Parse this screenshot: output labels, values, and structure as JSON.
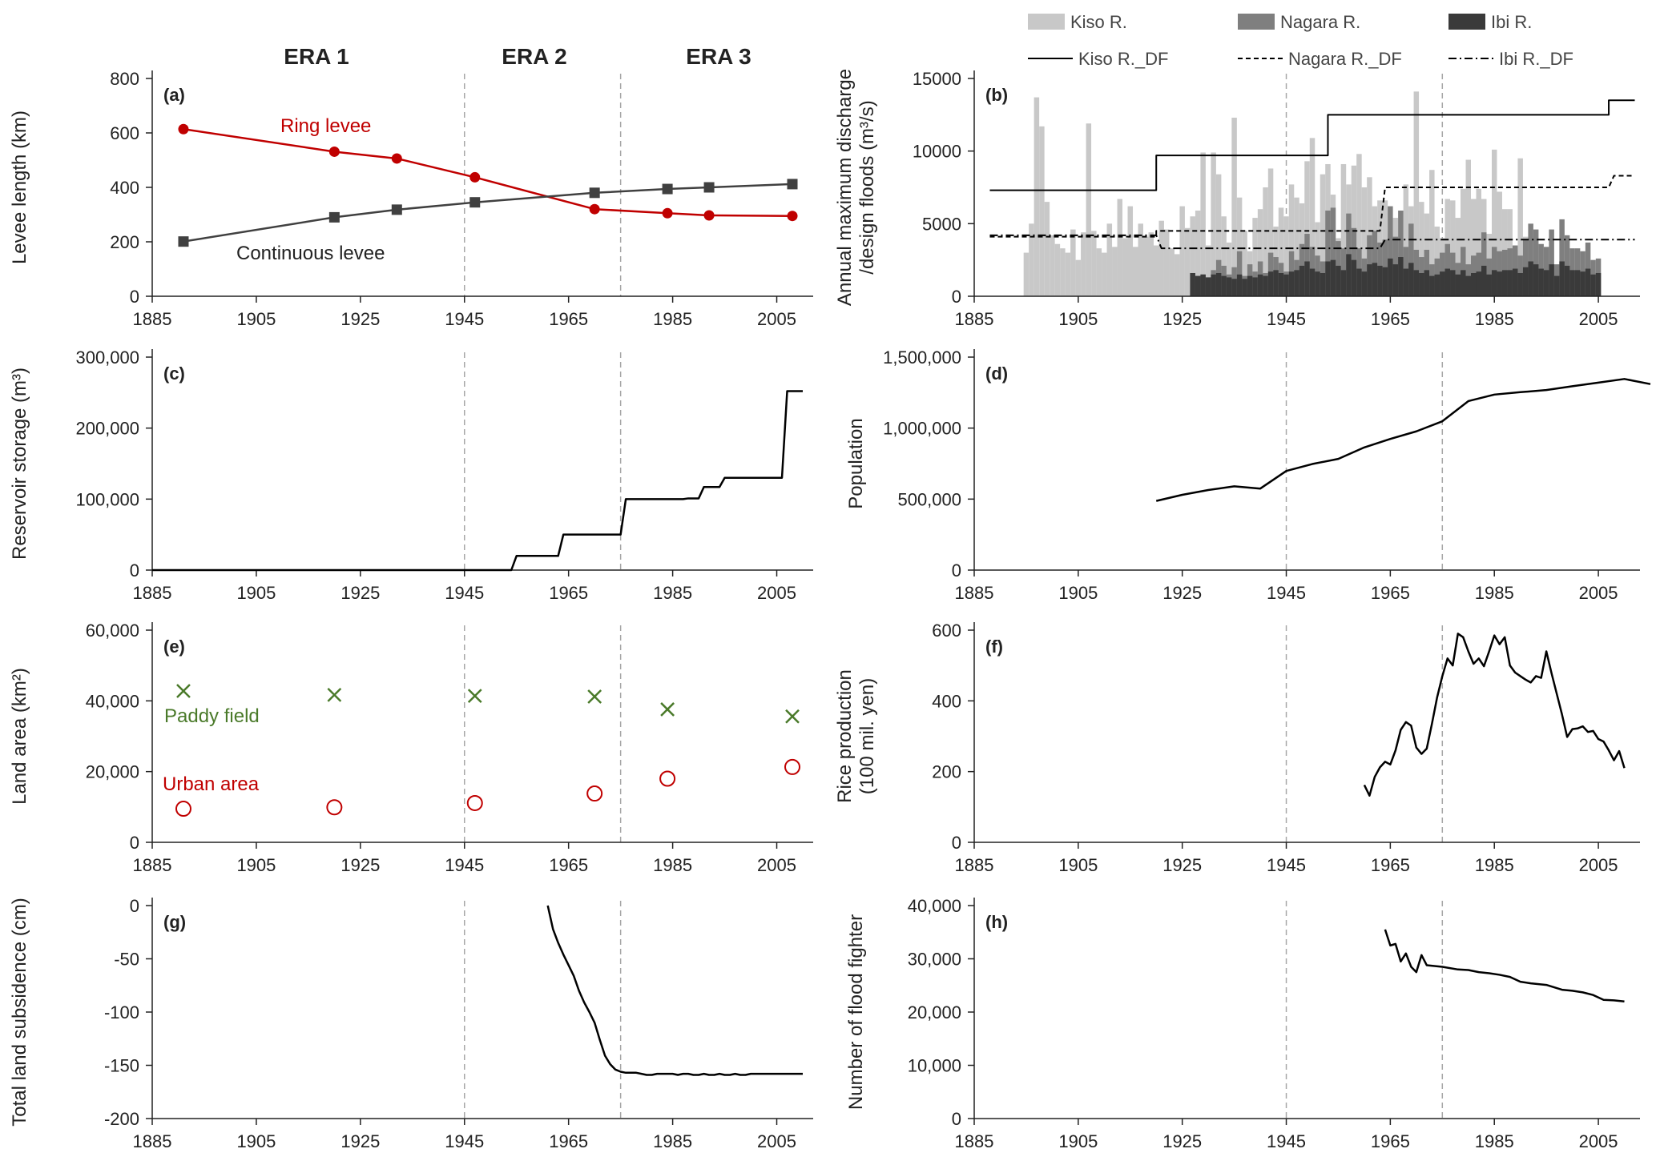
{
  "figure": {
    "eras": [
      "ERA 1",
      "ERA 2",
      "ERA 3"
    ],
    "era_boundaries": [
      1945,
      1975
    ]
  },
  "chart_data": [
    {
      "id": "a",
      "panel_label": "(a)",
      "type": "line",
      "ylabel": "Levee length (km)",
      "xlabel": "",
      "xlim": [
        1885,
        2012
      ],
      "ylim": [
        0,
        800
      ],
      "xticks": [
        1885,
        1905,
        1925,
        1945,
        1965,
        1985,
        2005
      ],
      "yticks": [
        0,
        200,
        400,
        600,
        800
      ],
      "series": [
        {
          "name": "Ring levee",
          "color": "#c00000",
          "marker": "circle",
          "x": [
            1891,
            1920,
            1932,
            1947,
            1970,
            1984,
            1992,
            2008
          ],
          "y": [
            614,
            531,
            506,
            437,
            320,
            305,
            297,
            295
          ]
        },
        {
          "name": "Continuous levee",
          "color": "#404040",
          "marker": "square",
          "x": [
            1891,
            1920,
            1932,
            1947,
            1970,
            1984,
            1992,
            2008
          ],
          "y": [
            201,
            290,
            318,
            345,
            380,
            394,
            400,
            412
          ]
        }
      ]
    },
    {
      "id": "b",
      "panel_label": "(b)",
      "type": "bar",
      "ylabel": "Annual maximum discharge /design floods (m³/s)",
      "xlabel": "",
      "ylabel_lines": [
        "Annual maximum discharge",
        "/design floods (m³/s)"
      ],
      "xlim": [
        1885,
        2013
      ],
      "ylim": [
        0,
        15000
      ],
      "xticks": [
        1885,
        1905,
        1925,
        1945,
        1965,
        1985,
        2005
      ],
      "yticks": [
        0,
        5000,
        10000,
        15000
      ],
      "legend": [
        {
          "name": "Kiso R.",
          "kind": "bar",
          "color": "#c8c8c8"
        },
        {
          "name": "Nagara R.",
          "kind": "bar",
          "color": "#7f7f7f"
        },
        {
          "name": "Ibi R.",
          "kind": "bar",
          "color": "#3a3a3a"
        },
        {
          "name": "Kiso R._DF",
          "kind": "line",
          "dash": "solid"
        },
        {
          "name": "Nagara R._DF",
          "kind": "line",
          "dash": "dashed"
        },
        {
          "name": "Ibi R._DF",
          "kind": "line",
          "dash": "dashdot"
        }
      ],
      "series": [
        {
          "name": "Kiso R.",
          "color": "#c8c8c8",
          "x_start": 1895,
          "values": [
            3000,
            5000,
            13700,
            11700,
            6500,
            4200,
            3600,
            3300,
            3000,
            4600,
            2500,
            4400,
            11900,
            4500,
            3300,
            3000,
            5000,
            3400,
            6700,
            4000,
            6200,
            3400,
            5000,
            4100,
            4400,
            3500,
            5200,
            4600,
            3300,
            2900,
            6200,
            4700,
            5500,
            5900,
            9900,
            3500,
            9900,
            8400,
            5500,
            3700,
            12300,
            6800,
            4500,
            3100,
            5400,
            6000,
            7500,
            8800,
            4800,
            6100,
            5500,
            7700,
            6800,
            6400,
            9300,
            10900,
            5100,
            8400,
            9100,
            7000,
            4000,
            9100,
            7700,
            9000,
            9800,
            7500,
            8200,
            6200,
            6600,
            6600,
            4300,
            5400,
            3000,
            7700,
            6200,
            14100,
            6500,
            5700,
            8700,
            4800,
            4000,
            6700,
            6600,
            5400,
            7400,
            9400,
            6700,
            7400,
            6700,
            4300,
            10100,
            7200,
            6000,
            6000,
            3200,
            9500,
            4100
          ]
        },
        {
          "name": "Nagara R.",
          "color": "#7f7f7f",
          "x_start": 1927,
          "values": [
            1600,
            1400,
            1500,
            1300,
            1800,
            2500,
            2100,
            1500,
            2000,
            3100,
            1400,
            2200,
            1700,
            2400,
            1600,
            3000,
            2700,
            2300,
            1700,
            3100,
            2500,
            3600,
            4300,
            3400,
            2800,
            2400,
            5900,
            6100,
            3800,
            3300,
            5700,
            4700,
            3300,
            2600,
            4200,
            4500,
            3700,
            3900,
            6200,
            4100,
            5900,
            3400,
            5000,
            3200,
            2700,
            3200,
            2200,
            2600,
            3000,
            3600,
            3000,
            2300,
            3400,
            2200,
            2800,
            3000,
            4400,
            2600,
            3400,
            3100,
            3200,
            3300,
            3500,
            2800,
            3900,
            5000,
            4600,
            3600,
            3400,
            4600,
            2200,
            5300,
            4200,
            3300,
            3300,
            3100,
            3700,
            2500,
            2600
          ]
        },
        {
          "name": "Ibi R.",
          "color": "#3a3a3a",
          "x_start": 1927,
          "values": [
            1600,
            1400,
            1500,
            1300,
            1500,
            1600,
            1400,
            1300,
            1200,
            1500,
            1200,
            1400,
            1300,
            1500,
            1400,
            1700,
            1800,
            1600,
            1500,
            1700,
            1800,
            2100,
            2400,
            1900,
            1700,
            1600,
            2400,
            2500,
            2100,
            1800,
            2900,
            2500,
            1900,
            1700,
            2200,
            2300,
            2100,
            2000,
            2600,
            2200,
            2700,
            1900,
            2300,
            1800,
            1600,
            1800,
            1400,
            1500,
            1700,
            1900,
            1800,
            1500,
            1800,
            1400,
            1600,
            1700,
            2100,
            1500,
            1800,
            1700,
            1800,
            1800,
            1900,
            1600,
            2000,
            2400,
            2200,
            1900,
            1800,
            2200,
            1400,
            2400,
            2100,
            1800,
            1800,
            1700,
            1900,
            1500,
            1600
          ]
        },
        {
          "name": "Kiso R._DF",
          "kind": "step",
          "dash": "solid",
          "x": [
            1888,
            1920,
            1920,
            1953,
            1953,
            2007,
            2007,
            2012
          ],
          "y": [
            7300,
            7300,
            9700,
            9700,
            12500,
            12500,
            13500,
            13500
          ]
        },
        {
          "name": "Nagara R._DF",
          "kind": "step",
          "dash": "dashed",
          "x": [
            1888,
            1920,
            1920,
            1963,
            1964,
            2007,
            2008,
            2012
          ],
          "y": [
            4100,
            4100,
            4500,
            4500,
            7500,
            7500,
            8300,
            8300
          ]
        },
        {
          "name": "Ibi R._DF",
          "kind": "step",
          "dash": "dashdot",
          "x": [
            1888,
            1920,
            1921,
            1963,
            1964,
            2012
          ],
          "y": [
            4200,
            4200,
            3300,
            3300,
            3900,
            3900
          ]
        }
      ]
    },
    {
      "id": "c",
      "panel_label": "(c)",
      "type": "line",
      "ylabel": "Reservoir storage (m³)",
      "xlabel": "",
      "xlim": [
        1885,
        2012
      ],
      "ylim": [
        0,
        300000
      ],
      "xticks": [
        1885,
        1905,
        1925,
        1945,
        1965,
        1985,
        2005
      ],
      "yticks": [
        0,
        100000,
        200000,
        300000
      ],
      "series": [
        {
          "name": "",
          "color": "#000000",
          "x": [
            1885,
            1954,
            1955,
            1963,
            1964,
            1975,
            1976,
            1987,
            1988,
            1990,
            1991,
            1994,
            1995,
            2006,
            2007,
            2010
          ],
          "y": [
            0,
            0,
            20000,
            20000,
            50000,
            50000,
            100000,
            100000,
            101000,
            101000,
            117000,
            117000,
            130000,
            130000,
            252000,
            252000
          ]
        }
      ]
    },
    {
      "id": "d",
      "panel_label": "(d)",
      "type": "line",
      "ylabel": "Population",
      "xlabel": "",
      "xlim": [
        1885,
        2013
      ],
      "ylim": [
        0,
        1500000
      ],
      "xticks": [
        1885,
        1905,
        1925,
        1945,
        1965,
        1985,
        2005
      ],
      "yticks": [
        0,
        500000,
        1000000,
        1500000
      ],
      "series": [
        {
          "name": "",
          "color": "#000000",
          "x": [
            1920,
            1925,
            1930,
            1935,
            1940,
            1945,
            1950,
            1955,
            1960,
            1965,
            1970,
            1975,
            1980,
            1985,
            1990,
            1995,
            2000,
            2005,
            2010,
            2015
          ],
          "y": [
            487000,
            530000,
            564000,
            590000,
            574000,
            698000,
            747000,
            783000,
            864000,
            924000,
            977000,
            1048000,
            1190000,
            1236000,
            1253000,
            1268000,
            1295000,
            1320000,
            1346000,
            1310000
          ]
        }
      ]
    },
    {
      "id": "e",
      "panel_label": "(e)",
      "type": "scatter",
      "ylabel": "Land area (km²)",
      "xlabel": "",
      "xlim": [
        1885,
        2012
      ],
      "ylim": [
        0,
        60000
      ],
      "xticks": [
        1885,
        1905,
        1925,
        1945,
        1965,
        1985,
        2005
      ],
      "yticks": [
        0,
        20000,
        40000,
        60000
      ],
      "series": [
        {
          "name": "Paddy field",
          "color": "#4a7a2a",
          "marker": "x",
          "x": [
            1891,
            1920,
            1947,
            1970,
            1984,
            2008
          ],
          "y": [
            42800,
            41700,
            41400,
            41200,
            37600,
            35600
          ]
        },
        {
          "name": "Urban area",
          "color": "#c00000",
          "marker": "open-circle",
          "x": [
            1891,
            1920,
            1947,
            1970,
            1984,
            2008
          ],
          "y": [
            9500,
            9900,
            11100,
            13800,
            18000,
            21300
          ]
        }
      ]
    },
    {
      "id": "f",
      "panel_label": "(f)",
      "type": "line",
      "ylabel": "Rice production (100 mil. yen)",
      "xlabel": "",
      "ylabel_lines": [
        "Rice production",
        "(100 mil. yen)"
      ],
      "xlim": [
        1885,
        2013
      ],
      "ylim": [
        0,
        600
      ],
      "xticks": [
        1885,
        1905,
        1925,
        1945,
        1965,
        1985,
        2005
      ],
      "yticks": [
        0,
        200,
        400,
        600
      ],
      "series": [
        {
          "name": "",
          "color": "#000000",
          "x": [
            1960,
            1961,
            1962,
            1963,
            1964,
            1965,
            1966,
            1967,
            1968,
            1969,
            1970,
            1971,
            1972,
            1973,
            1974,
            1975,
            1976,
            1977,
            1978,
            1979,
            1980,
            1981,
            1982,
            1983,
            1984,
            1985,
            1986,
            1987,
            1988,
            1989,
            1990,
            1991,
            1992,
            1993,
            1994,
            1995,
            1996,
            1997,
            1998,
            1999,
            2000,
            2001,
            2002,
            2003,
            2004,
            2005,
            2006,
            2007,
            2008,
            2009,
            2010
          ],
          "y": [
            162,
            132,
            185,
            212,
            228,
            220,
            260,
            318,
            340,
            330,
            268,
            250,
            265,
            335,
            410,
            470,
            520,
            500,
            590,
            580,
            540,
            505,
            520,
            498,
            540,
            585,
            560,
            580,
            500,
            480,
            470,
            460,
            452,
            470,
            465,
            540,
            478,
            420,
            362,
            298,
            320,
            322,
            328,
            312,
            315,
            292,
            285,
            260,
            232,
            258,
            210
          ]
        }
      ]
    },
    {
      "id": "g",
      "panel_label": "(g)",
      "type": "line",
      "ylabel": "Total land subsidence (cm)",
      "xlabel": "",
      "xlim": [
        1885,
        2012
      ],
      "ylim": [
        -200,
        0
      ],
      "xticks": [
        1885,
        1905,
        1925,
        1945,
        1965,
        1985,
        2005
      ],
      "yticks": [
        -200,
        -150,
        -100,
        -50,
        0
      ],
      "series": [
        {
          "name": "",
          "color": "#000000",
          "x": [
            1961,
            1962,
            1963,
            1964,
            1965,
            1966,
            1967,
            1968,
            1969,
            1970,
            1971,
            1972,
            1973,
            1974,
            1975,
            1976,
            1977,
            1978,
            1979,
            1980,
            1981,
            1982,
            1983,
            1984,
            1985,
            1986,
            1987,
            1988,
            1989,
            1990,
            1991,
            1992,
            1993,
            1994,
            1995,
            1996,
            1997,
            1998,
            1999,
            2000,
            2001,
            2002,
            2003,
            2004,
            2005,
            2006,
            2007,
            2008,
            2009,
            2010
          ],
          "y": [
            0,
            -22,
            -35,
            -46,
            -56,
            -66,
            -80,
            -91,
            -100,
            -110,
            -126,
            -141,
            -149,
            -154,
            -156,
            -157,
            -157,
            -157,
            -158,
            -159,
            -159,
            -158,
            -158,
            -158,
            -158,
            -159,
            -158,
            -158,
            -159,
            -159,
            -158,
            -159,
            -159,
            -158,
            -159,
            -159,
            -158,
            -159,
            -159,
            -158,
            -158,
            -158,
            -158,
            -158,
            -158,
            -158,
            -158,
            -158,
            -158,
            -158
          ]
        }
      ]
    },
    {
      "id": "h",
      "panel_label": "(h)",
      "type": "line",
      "ylabel": "Number of flood fighter",
      "xlabel": "",
      "xlim": [
        1885,
        2013
      ],
      "ylim": [
        0,
        40000
      ],
      "xticks": [
        1885,
        1905,
        1925,
        1945,
        1965,
        1985,
        2005
      ],
      "yticks": [
        0,
        10000,
        20000,
        30000,
        40000
      ],
      "series": [
        {
          "name": "",
          "color": "#000000",
          "x": [
            1964,
            1965,
            1966,
            1967,
            1968,
            1969,
            1970,
            1971,
            1972,
            1975,
            1978,
            1980,
            1982,
            1984,
            1986,
            1988,
            1990,
            1992,
            1995,
            1998,
            2000,
            2002,
            2004,
            2006,
            2008,
            2010
          ],
          "y": [
            35500,
            32500,
            32800,
            29500,
            31000,
            28500,
            27500,
            30700,
            28800,
            28500,
            28000,
            27900,
            27500,
            27300,
            27000,
            26600,
            25700,
            25400,
            25100,
            24200,
            24000,
            23700,
            23200,
            22300,
            22200,
            22000
          ]
        }
      ]
    }
  ]
}
